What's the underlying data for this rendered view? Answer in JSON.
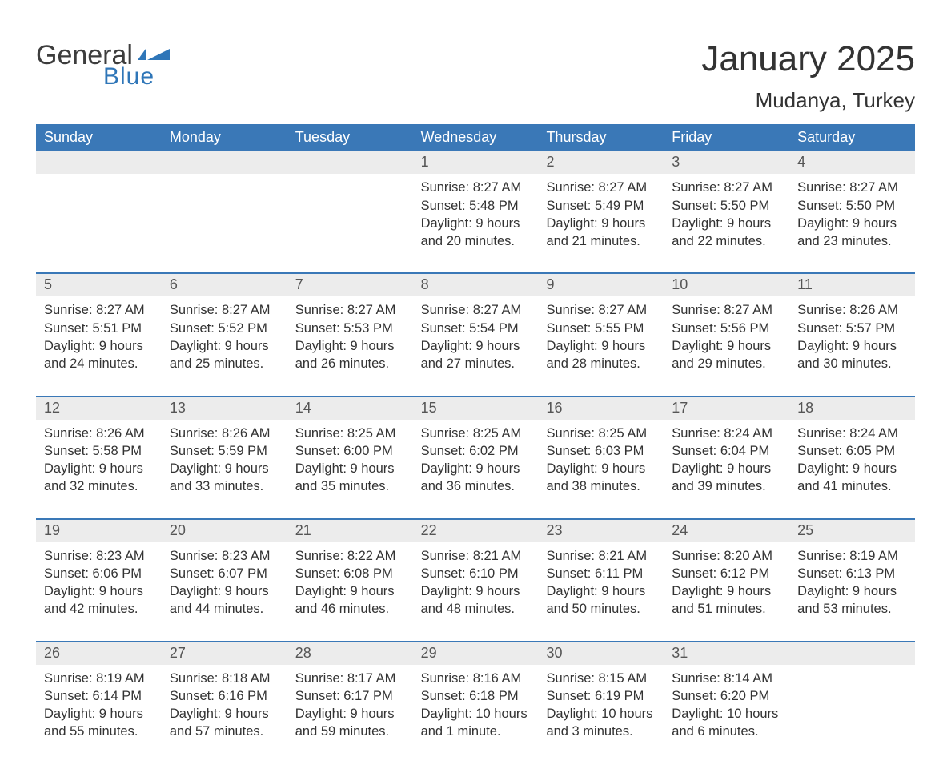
{
  "brand": {
    "general_text": "General",
    "blue_text": "Blue",
    "general_color": "#3d3d3d",
    "blue_color": "#2f76b8",
    "flag_color": "#2f76b8"
  },
  "title": "January 2025",
  "location": "Mudanya, Turkey",
  "colors": {
    "header_bg": "#3a78b7",
    "header_text": "#ffffff",
    "daynum_bg": "#ececec",
    "daynum_text": "#555555",
    "body_text": "#333333",
    "week_border": "#3a78b7",
    "page_bg": "#ffffff"
  },
  "typography": {
    "title_fontsize": 44,
    "location_fontsize": 26,
    "dow_fontsize": 18,
    "daynum_fontsize": 18,
    "content_fontsize": 16.5,
    "font_family": "Arial"
  },
  "calendar": {
    "type": "table",
    "days_of_week": [
      "Sunday",
      "Monday",
      "Tuesday",
      "Wednesday",
      "Thursday",
      "Friday",
      "Saturday"
    ],
    "weeks": [
      {
        "days": [
          {
            "num": "",
            "sunrise": "",
            "sunset": "",
            "daylight_l1": "",
            "daylight_l2": ""
          },
          {
            "num": "",
            "sunrise": "",
            "sunset": "",
            "daylight_l1": "",
            "daylight_l2": ""
          },
          {
            "num": "",
            "sunrise": "",
            "sunset": "",
            "daylight_l1": "",
            "daylight_l2": ""
          },
          {
            "num": "1",
            "sunrise": "Sunrise: 8:27 AM",
            "sunset": "Sunset: 5:48 PM",
            "daylight_l1": "Daylight: 9 hours",
            "daylight_l2": "and 20 minutes."
          },
          {
            "num": "2",
            "sunrise": "Sunrise: 8:27 AM",
            "sunset": "Sunset: 5:49 PM",
            "daylight_l1": "Daylight: 9 hours",
            "daylight_l2": "and 21 minutes."
          },
          {
            "num": "3",
            "sunrise": "Sunrise: 8:27 AM",
            "sunset": "Sunset: 5:50 PM",
            "daylight_l1": "Daylight: 9 hours",
            "daylight_l2": "and 22 minutes."
          },
          {
            "num": "4",
            "sunrise": "Sunrise: 8:27 AM",
            "sunset": "Sunset: 5:50 PM",
            "daylight_l1": "Daylight: 9 hours",
            "daylight_l2": "and 23 minutes."
          }
        ]
      },
      {
        "days": [
          {
            "num": "5",
            "sunrise": "Sunrise: 8:27 AM",
            "sunset": "Sunset: 5:51 PM",
            "daylight_l1": "Daylight: 9 hours",
            "daylight_l2": "and 24 minutes."
          },
          {
            "num": "6",
            "sunrise": "Sunrise: 8:27 AM",
            "sunset": "Sunset: 5:52 PM",
            "daylight_l1": "Daylight: 9 hours",
            "daylight_l2": "and 25 minutes."
          },
          {
            "num": "7",
            "sunrise": "Sunrise: 8:27 AM",
            "sunset": "Sunset: 5:53 PM",
            "daylight_l1": "Daylight: 9 hours",
            "daylight_l2": "and 26 minutes."
          },
          {
            "num": "8",
            "sunrise": "Sunrise: 8:27 AM",
            "sunset": "Sunset: 5:54 PM",
            "daylight_l1": "Daylight: 9 hours",
            "daylight_l2": "and 27 minutes."
          },
          {
            "num": "9",
            "sunrise": "Sunrise: 8:27 AM",
            "sunset": "Sunset: 5:55 PM",
            "daylight_l1": "Daylight: 9 hours",
            "daylight_l2": "and 28 minutes."
          },
          {
            "num": "10",
            "sunrise": "Sunrise: 8:27 AM",
            "sunset": "Sunset: 5:56 PM",
            "daylight_l1": "Daylight: 9 hours",
            "daylight_l2": "and 29 minutes."
          },
          {
            "num": "11",
            "sunrise": "Sunrise: 8:26 AM",
            "sunset": "Sunset: 5:57 PM",
            "daylight_l1": "Daylight: 9 hours",
            "daylight_l2": "and 30 minutes."
          }
        ]
      },
      {
        "days": [
          {
            "num": "12",
            "sunrise": "Sunrise: 8:26 AM",
            "sunset": "Sunset: 5:58 PM",
            "daylight_l1": "Daylight: 9 hours",
            "daylight_l2": "and 32 minutes."
          },
          {
            "num": "13",
            "sunrise": "Sunrise: 8:26 AM",
            "sunset": "Sunset: 5:59 PM",
            "daylight_l1": "Daylight: 9 hours",
            "daylight_l2": "and 33 minutes."
          },
          {
            "num": "14",
            "sunrise": "Sunrise: 8:25 AM",
            "sunset": "Sunset: 6:00 PM",
            "daylight_l1": "Daylight: 9 hours",
            "daylight_l2": "and 35 minutes."
          },
          {
            "num": "15",
            "sunrise": "Sunrise: 8:25 AM",
            "sunset": "Sunset: 6:02 PM",
            "daylight_l1": "Daylight: 9 hours",
            "daylight_l2": "and 36 minutes."
          },
          {
            "num": "16",
            "sunrise": "Sunrise: 8:25 AM",
            "sunset": "Sunset: 6:03 PM",
            "daylight_l1": "Daylight: 9 hours",
            "daylight_l2": "and 38 minutes."
          },
          {
            "num": "17",
            "sunrise": "Sunrise: 8:24 AM",
            "sunset": "Sunset: 6:04 PM",
            "daylight_l1": "Daylight: 9 hours",
            "daylight_l2": "and 39 minutes."
          },
          {
            "num": "18",
            "sunrise": "Sunrise: 8:24 AM",
            "sunset": "Sunset: 6:05 PM",
            "daylight_l1": "Daylight: 9 hours",
            "daylight_l2": "and 41 minutes."
          }
        ]
      },
      {
        "days": [
          {
            "num": "19",
            "sunrise": "Sunrise: 8:23 AM",
            "sunset": "Sunset: 6:06 PM",
            "daylight_l1": "Daylight: 9 hours",
            "daylight_l2": "and 42 minutes."
          },
          {
            "num": "20",
            "sunrise": "Sunrise: 8:23 AM",
            "sunset": "Sunset: 6:07 PM",
            "daylight_l1": "Daylight: 9 hours",
            "daylight_l2": "and 44 minutes."
          },
          {
            "num": "21",
            "sunrise": "Sunrise: 8:22 AM",
            "sunset": "Sunset: 6:08 PM",
            "daylight_l1": "Daylight: 9 hours",
            "daylight_l2": "and 46 minutes."
          },
          {
            "num": "22",
            "sunrise": "Sunrise: 8:21 AM",
            "sunset": "Sunset: 6:10 PM",
            "daylight_l1": "Daylight: 9 hours",
            "daylight_l2": "and 48 minutes."
          },
          {
            "num": "23",
            "sunrise": "Sunrise: 8:21 AM",
            "sunset": "Sunset: 6:11 PM",
            "daylight_l1": "Daylight: 9 hours",
            "daylight_l2": "and 50 minutes."
          },
          {
            "num": "24",
            "sunrise": "Sunrise: 8:20 AM",
            "sunset": "Sunset: 6:12 PM",
            "daylight_l1": "Daylight: 9 hours",
            "daylight_l2": "and 51 minutes."
          },
          {
            "num": "25",
            "sunrise": "Sunrise: 8:19 AM",
            "sunset": "Sunset: 6:13 PM",
            "daylight_l1": "Daylight: 9 hours",
            "daylight_l2": "and 53 minutes."
          }
        ]
      },
      {
        "days": [
          {
            "num": "26",
            "sunrise": "Sunrise: 8:19 AM",
            "sunset": "Sunset: 6:14 PM",
            "daylight_l1": "Daylight: 9 hours",
            "daylight_l2": "and 55 minutes."
          },
          {
            "num": "27",
            "sunrise": "Sunrise: 8:18 AM",
            "sunset": "Sunset: 6:16 PM",
            "daylight_l1": "Daylight: 9 hours",
            "daylight_l2": "and 57 minutes."
          },
          {
            "num": "28",
            "sunrise": "Sunrise: 8:17 AM",
            "sunset": "Sunset: 6:17 PM",
            "daylight_l1": "Daylight: 9 hours",
            "daylight_l2": "and 59 minutes."
          },
          {
            "num": "29",
            "sunrise": "Sunrise: 8:16 AM",
            "sunset": "Sunset: 6:18 PM",
            "daylight_l1": "Daylight: 10 hours",
            "daylight_l2": "and 1 minute."
          },
          {
            "num": "30",
            "sunrise": "Sunrise: 8:15 AM",
            "sunset": "Sunset: 6:19 PM",
            "daylight_l1": "Daylight: 10 hours",
            "daylight_l2": "and 3 minutes."
          },
          {
            "num": "31",
            "sunrise": "Sunrise: 8:14 AM",
            "sunset": "Sunset: 6:20 PM",
            "daylight_l1": "Daylight: 10 hours",
            "daylight_l2": "and 6 minutes."
          },
          {
            "num": "",
            "sunrise": "",
            "sunset": "",
            "daylight_l1": "",
            "daylight_l2": ""
          }
        ]
      }
    ]
  }
}
